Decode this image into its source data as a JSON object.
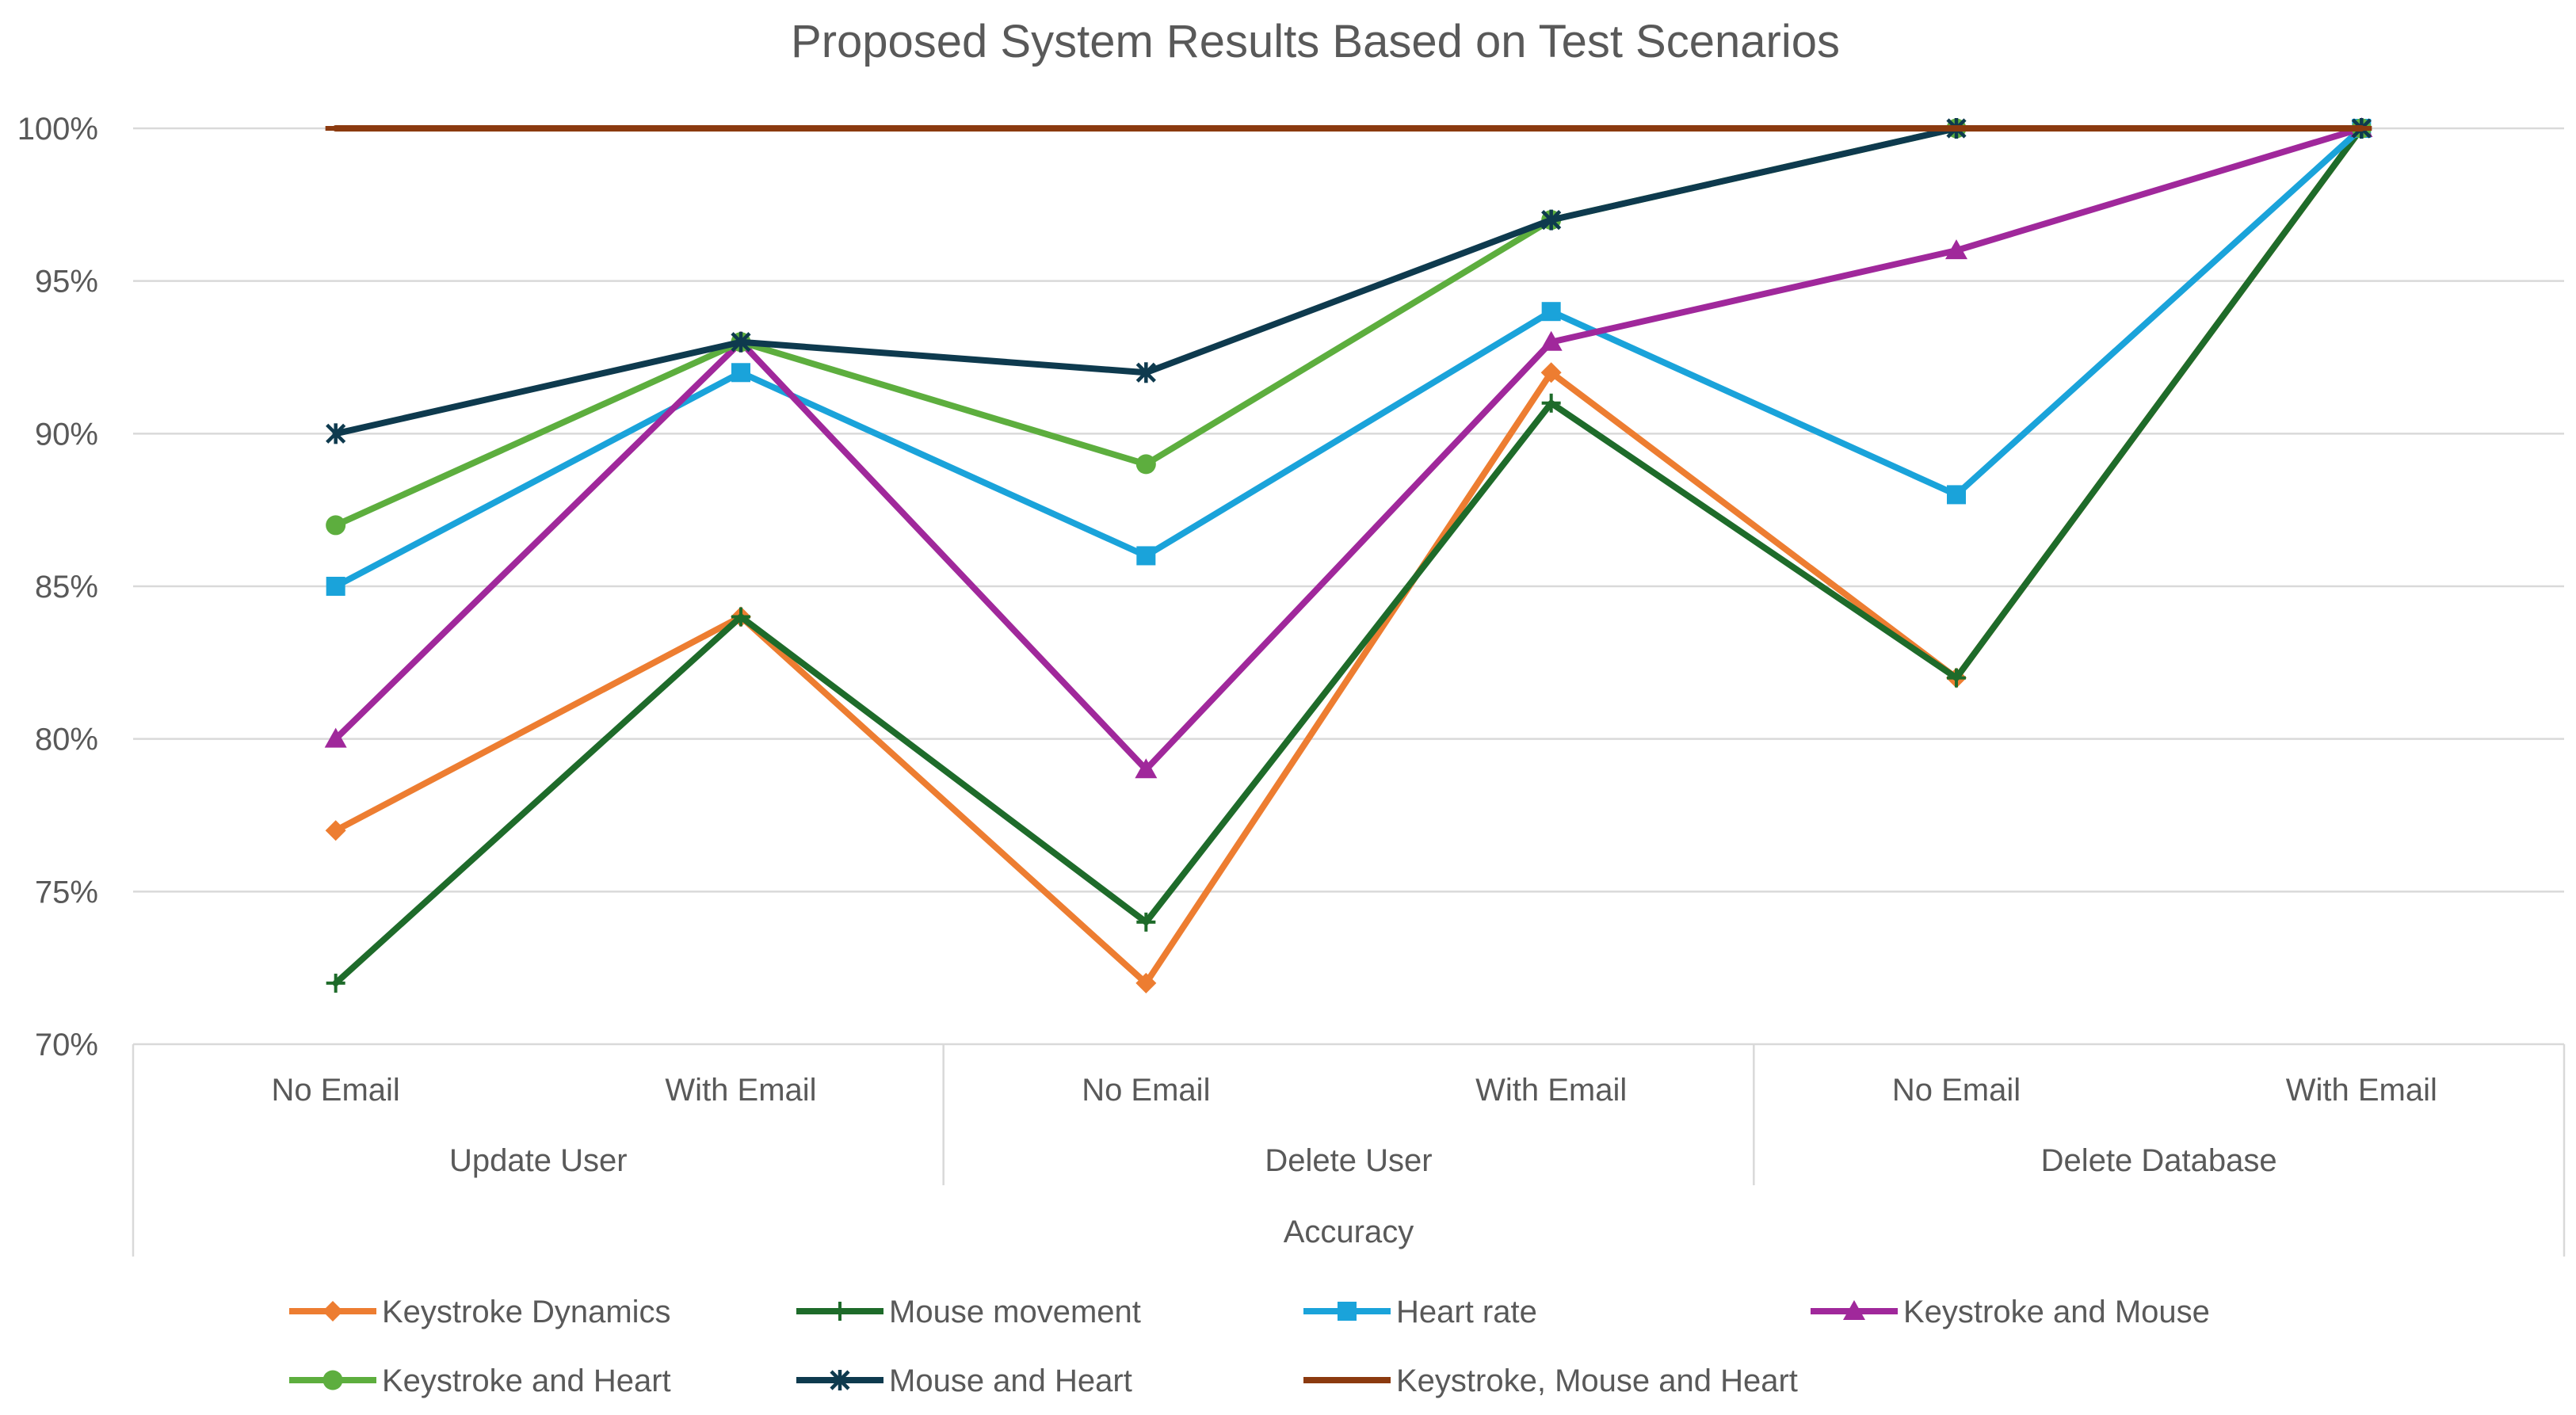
{
  "chart_data": {
    "type": "line",
    "title": "Proposed System Results Based on Test Scenarios",
    "xlabel": "",
    "ylabel": "",
    "ylim": [
      70,
      100
    ],
    "yticks": [
      70,
      75,
      80,
      85,
      90,
      95,
      100
    ],
    "ytick_labels": [
      "70%",
      "75%",
      "80%",
      "85%",
      "90%",
      "95%",
      "100%"
    ],
    "grid": true,
    "legend_position": "bottom",
    "categories": [
      "No Email",
      "With Email",
      "No Email",
      "With Email",
      "No Email",
      "With Email"
    ],
    "groups": [
      {
        "label": "Update User",
        "span": [
          0,
          1
        ]
      },
      {
        "label": "Delete User",
        "span": [
          2,
          3
        ]
      },
      {
        "label": "Delete Database",
        "span": [
          4,
          5
        ]
      }
    ],
    "outer_label": "Accuracy",
    "series": [
      {
        "name": "Keystroke Dynamics",
        "color": "#ED7D31",
        "marker": "diamond",
        "values": [
          77,
          84,
          72,
          92,
          82,
          100
        ]
      },
      {
        "name": "Mouse movement",
        "color": "#1E6B2A",
        "marker": "plus",
        "values": [
          72,
          84,
          74,
          91,
          82,
          100
        ]
      },
      {
        "name": "Heart rate",
        "color": "#1AA3DA",
        "marker": "square",
        "values": [
          85,
          92,
          86,
          94,
          88,
          100
        ]
      },
      {
        "name": "Keystroke and Mouse",
        "color": "#A0289B",
        "marker": "triangle",
        "values": [
          80,
          93,
          79,
          93,
          96,
          100
        ]
      },
      {
        "name": "Keystroke and Heart",
        "color": "#5DAE3E",
        "marker": "circle",
        "values": [
          87,
          93,
          89,
          97,
          100,
          100
        ]
      },
      {
        "name": "Mouse and Heart",
        "color": "#0E3A4E",
        "marker": "star",
        "values": [
          90,
          93,
          92,
          97,
          100,
          100
        ]
      },
      {
        "name": "Keystroke, Mouse and Heart",
        "color": "#8B3A0F",
        "marker": "dash",
        "values": [
          100,
          100,
          100,
          100,
          100,
          100
        ]
      }
    ]
  }
}
